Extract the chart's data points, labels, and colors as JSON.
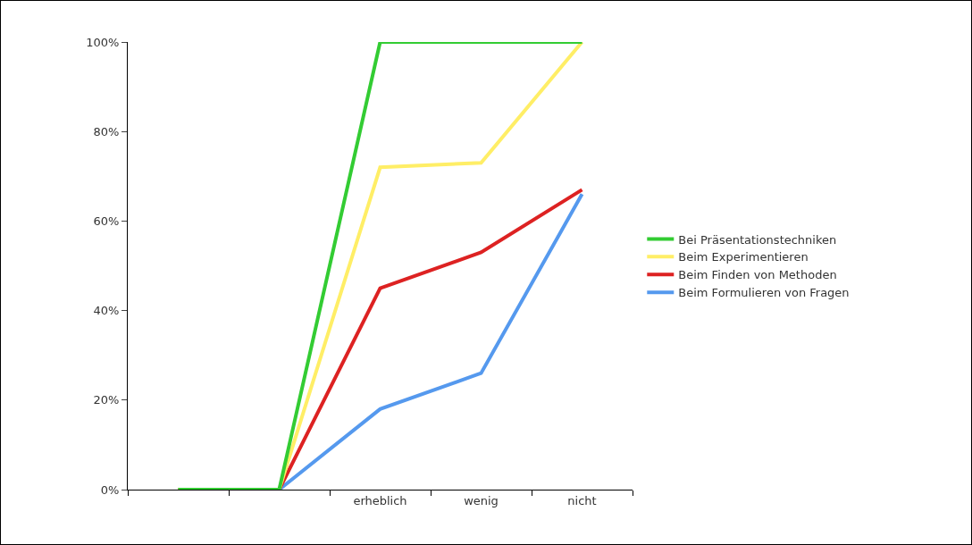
{
  "chart_data": {
    "type": "line",
    "categories": [
      null,
      null,
      "erheblich",
      "wenig",
      "nicht"
    ],
    "series": [
      {
        "name": "Bei Präsentationstechniken",
        "color": "#33cc33",
        "values": [
          0,
          0,
          100,
          100,
          100
        ]
      },
      {
        "name": "Beim Experimentieren",
        "color": "#ffee66",
        "values": [
          0,
          0,
          72,
          73,
          100
        ]
      },
      {
        "name": "Beim Finden von Methoden",
        "color": "#dd2222",
        "values": [
          0,
          0,
          45,
          53,
          67
        ]
      },
      {
        "name": "Beim Formulieren von Fragen",
        "color": "#5599ee",
        "values": [
          0,
          0,
          18,
          26,
          66
        ]
      }
    ],
    "ylim": [
      0,
      100
    ],
    "yticks": [
      {
        "value": 0,
        "label": "0%"
      },
      {
        "value": 20,
        "label": "20%"
      },
      {
        "value": 40,
        "label": "40%"
      },
      {
        "value": 60,
        "label": "60%"
      },
      {
        "value": 80,
        "label": "80%"
      },
      {
        "value": 100,
        "label": "100%"
      }
    ],
    "legend": "right",
    "marker": "none",
    "line_style": "solid"
  }
}
